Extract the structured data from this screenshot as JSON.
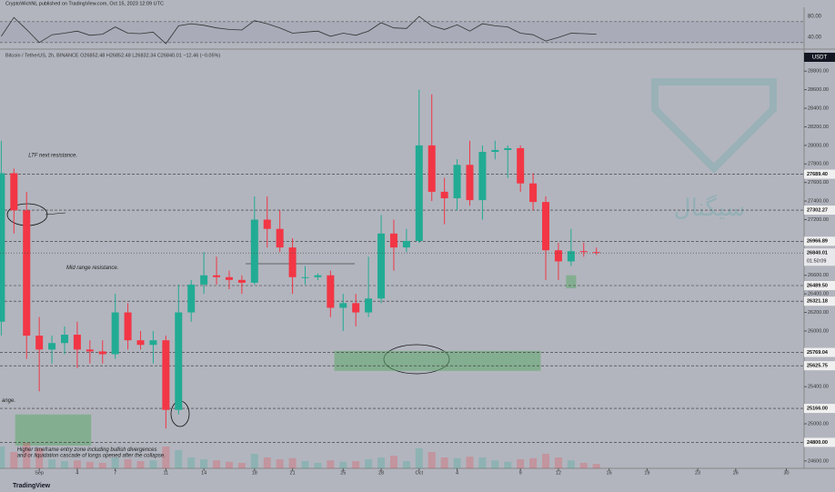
{
  "header": "CryptoWichNL published on TradingView.com, Oct 15, 2023 12:09 UTC",
  "footer": "TradingView",
  "watermark": "سیگنال",
  "chart_data": {
    "type": "candlestick",
    "legend": "Bitcoin / TetherUS, 2h, BINANCE  O26852.48 H26852.48 L26832.34 C26840.01 −12.46 (−0.05%)",
    "unit": "USDT",
    "up_color": "#22ab94",
    "down_color": "#f23645",
    "x": [
      -3,
      -2,
      -1,
      0,
      1,
      2,
      3,
      4,
      5,
      6,
      7,
      8,
      9,
      10,
      11,
      12,
      13,
      14,
      15,
      16,
      17,
      18,
      19,
      20,
      21,
      22,
      23,
      24,
      25,
      26,
      27,
      28,
      29,
      30,
      31,
      32,
      33,
      34,
      35,
      36,
      37,
      38,
      39,
      40,
      41,
      42,
      43,
      44
    ],
    "open": [
      26100,
      27700,
      27300,
      25950,
      25800,
      25870,
      25960,
      25800,
      25780,
      25750,
      26200,
      25900,
      25850,
      25900,
      25150,
      26200,
      26500,
      26600,
      26580,
      26550,
      26520,
      27200,
      27100,
      26900,
      26580,
      26580,
      26600,
      26250,
      26300,
      26200,
      26350,
      27050,
      26900,
      26970,
      28000,
      27500,
      27430,
      27790,
      27410,
      27930,
      27950,
      27970,
      27590,
      27390,
      26870,
      26750,
      26860,
      26850
    ],
    "high": [
      28050,
      27750,
      27500,
      26150,
      25950,
      26050,
      26100,
      25900,
      25900,
      26400,
      26300,
      26000,
      26000,
      25950,
      26500,
      26550,
      26850,
      26800,
      26650,
      26600,
      27450,
      27450,
      27300,
      27000,
      26700,
      26620,
      26650,
      26400,
      26400,
      26800,
      27250,
      27200,
      27100,
      28600,
      28550,
      27650,
      27850,
      28050,
      28000,
      28050,
      28000,
      28000,
      27700,
      27450,
      26950,
      27100,
      26950,
      26900
    ],
    "low": [
      25950,
      27050,
      25700,
      25350,
      25650,
      25750,
      25600,
      25650,
      25650,
      25700,
      25800,
      25800,
      25650,
      24950,
      25100,
      26100,
      26400,
      26500,
      26450,
      26400,
      26500,
      26900,
      26850,
      26400,
      26500,
      26550,
      26150,
      26000,
      26050,
      26150,
      26300,
      26650,
      26850,
      26950,
      27400,
      27150,
      27300,
      27350,
      27200,
      27850,
      27650,
      27500,
      27300,
      26550,
      26550,
      26700,
      26800,
      26820
    ],
    "close": [
      27700,
      27300,
      25950,
      25800,
      25870,
      25960,
      25800,
      25780,
      25750,
      26200,
      25900,
      25850,
      25900,
      25150,
      26200,
      26500,
      26600,
      26580,
      26550,
      26520,
      27200,
      27100,
      26900,
      26580,
      26580,
      26600,
      26250,
      26300,
      26200,
      26350,
      27050,
      26900,
      26970,
      28000,
      27500,
      27430,
      27790,
      27410,
      27930,
      27950,
      27970,
      27590,
      27390,
      26870,
      26750,
      26860,
      26850,
      26840
    ],
    "volume": [
      60,
      45,
      70,
      55,
      25,
      20,
      22,
      18,
      15,
      30,
      25,
      20,
      22,
      60,
      50,
      30,
      25,
      22,
      18,
      15,
      40,
      30,
      25,
      28,
      20,
      15,
      22,
      18,
      20,
      25,
      30,
      35,
      20,
      55,
      45,
      30,
      28,
      32,
      30,
      22,
      18,
      25,
      28,
      40,
      30,
      22,
      15,
      12
    ],
    "xlim": [
      -3.1,
      60.4
    ],
    "xticks": [
      {
        "value": 0,
        "label": "Sep"
      },
      {
        "value": 3,
        "label": "4"
      },
      {
        "value": 6,
        "label": "7"
      },
      {
        "value": 10,
        "label": "11"
      },
      {
        "value": 13,
        "label": "14"
      },
      {
        "value": 17,
        "label": "18"
      },
      {
        "value": 20,
        "label": "21"
      },
      {
        "value": 24,
        "label": "25"
      },
      {
        "value": 27,
        "label": "28"
      },
      {
        "value": 30,
        "label": "Oct"
      },
      {
        "value": 33,
        "label": "4"
      },
      {
        "value": 38,
        "label": "9"
      },
      {
        "value": 41,
        "label": "12"
      },
      {
        "value": 45,
        "label": "16"
      },
      {
        "value": 48,
        "label": "19"
      },
      {
        "value": 52,
        "label": "23"
      },
      {
        "value": 55,
        "label": "26"
      },
      {
        "value": 59,
        "label": "30"
      }
    ],
    "ylim": [
      24520,
      28900
    ],
    "yticks": [
      {
        "value": 28800,
        "label": "28800.00"
      },
      {
        "value": 28600,
        "label": "28600.00"
      },
      {
        "value": 28400,
        "label": "28400.00"
      },
      {
        "value": 28200,
        "label": "28200.00"
      },
      {
        "value": 28000,
        "label": "28000.00"
      },
      {
        "value": 27800,
        "label": "27800.00"
      },
      {
        "value": 27600,
        "label": "27600.00"
      },
      {
        "value": 27400,
        "label": "27400.00"
      },
      {
        "value": 27200,
        "label": "27200.00"
      },
      {
        "value": 26600,
        "label": "26600.00"
      },
      {
        "value": 26400,
        "label": "26400.00"
      },
      {
        "value": 26200,
        "label": "26200.00"
      },
      {
        "value": 26000,
        "label": "26000.00"
      },
      {
        "value": 25400,
        "label": "25400.00"
      },
      {
        "value": 25000,
        "label": "25000.00"
      },
      {
        "value": 24600,
        "label": "24600.00"
      }
    ],
    "levels": [
      {
        "value": 27689.4,
        "label": "27689.40"
      },
      {
        "value": 27302.27,
        "label": "27302.27"
      },
      {
        "value": 26966.89,
        "label": "26966.89"
      },
      {
        "value": 26489.5,
        "label": "26489.50"
      },
      {
        "value": 26321.18,
        "label": "26321.18"
      },
      {
        "value": 25769.04,
        "label": "25769.04"
      },
      {
        "value": 25625.75,
        "label": "25625.75"
      },
      {
        "value": 25166.0,
        "label": "25166.00"
      },
      {
        "value": 24800.0,
        "label": "24800.00"
      }
    ],
    "current": {
      "value": 26840.01,
      "label": "26840.01",
      "countdown": "01:50:09"
    },
    "zones": [
      {
        "x": [
          23.3,
          39.6
        ],
        "y": [
          25570,
          25785
        ]
      },
      {
        "x": [
          -1.9,
          4.1
        ],
        "y": [
          24765,
          25100
        ]
      },
      {
        "x": [
          41.6,
          42.4
        ],
        "y": [
          26460,
          26600
        ]
      }
    ],
    "annotations": [
      {
        "text": "LTF next resistance.",
        "x": -1,
        "y": 27890
      },
      {
        "text": "Mid range resistance.",
        "x": 2,
        "y": 26680
      },
      {
        "text": "ange.",
        "x": -3.1,
        "y": 25250
      },
      {
        "text": "Higher timeframe entry zone including bullish divergences",
        "x": -1.9,
        "y": 24720
      },
      {
        "text": "and or liquidation cascade of longs opened after the collapse.",
        "x": -1.9,
        "y": 24660
      }
    ],
    "rsi": {
      "values": [
        42,
        78,
        55,
        30,
        45,
        48,
        52,
        44,
        46,
        60,
        48,
        47,
        50,
        28,
        62,
        66,
        63,
        58,
        55,
        54,
        72,
        66,
        58,
        48,
        50,
        52,
        42,
        48,
        44,
        52,
        68,
        58,
        57,
        80,
        62,
        55,
        64,
        52,
        66,
        62,
        60,
        48,
        45,
        33,
        40,
        48,
        47,
        46
      ],
      "ylim": [
        21,
        94
      ],
      "yticks": [
        {
          "value": 80,
          "label": "80.00"
        },
        {
          "value": 40,
          "label": "40.00"
        }
      ],
      "bands": [
        70,
        30
      ]
    }
  }
}
